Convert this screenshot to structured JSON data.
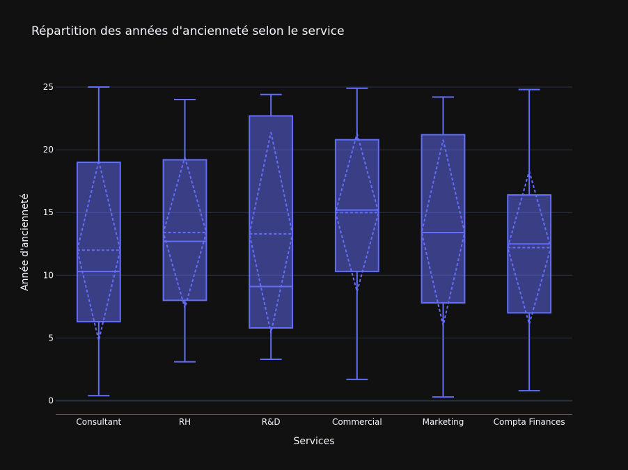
{
  "chart_data": {
    "type": "box",
    "title": "Répartition des années d'ancienneté selon le service",
    "xlabel": "Services",
    "ylabel": "Année d'ancienneté",
    "ylim": [
      -1.1,
      26.5
    ],
    "yticks": [
      0,
      5,
      10,
      15,
      20,
      25
    ],
    "grid": true,
    "legend": "none",
    "color": "#636efa",
    "fill_color": "rgba(99,110,250,0.5)",
    "categories": [
      "Consultant",
      "RH",
      "R&D",
      "Commercial",
      "Marketing",
      "Compta Finances"
    ],
    "boxes": [
      {
        "min": 0.4,
        "q1": 6.3,
        "median": 10.3,
        "q3": 19.0,
        "max": 25.0,
        "mean": 12.0,
        "mean_minus_sd": 4.8,
        "mean_plus_sd": 19.1
      },
      {
        "min": 3.1,
        "q1": 8.0,
        "median": 12.7,
        "q3": 19.2,
        "max": 24.0,
        "mean": 13.4,
        "mean_minus_sd": 7.4,
        "mean_plus_sd": 19.4
      },
      {
        "min": 3.3,
        "q1": 5.8,
        "median": 9.1,
        "q3": 22.7,
        "max": 24.4,
        "mean": 13.3,
        "mean_minus_sd": 5.4,
        "mean_plus_sd": 21.4
      },
      {
        "min": 1.7,
        "q1": 10.3,
        "median": 15.2,
        "q3": 20.8,
        "max": 24.9,
        "mean": 15.0,
        "mean_minus_sd": 8.7,
        "mean_plus_sd": 21.3
      },
      {
        "min": 0.3,
        "q1": 7.8,
        "median": 13.4,
        "q3": 21.2,
        "max": 24.2,
        "mean": 13.4,
        "mean_minus_sd": 6.0,
        "mean_plus_sd": 20.8
      },
      {
        "min": 0.8,
        "q1": 7.0,
        "median": 12.5,
        "q3": 16.4,
        "max": 24.8,
        "mean": 12.2,
        "mean_minus_sd": 6.1,
        "mean_plus_sd": 18.3
      }
    ]
  }
}
